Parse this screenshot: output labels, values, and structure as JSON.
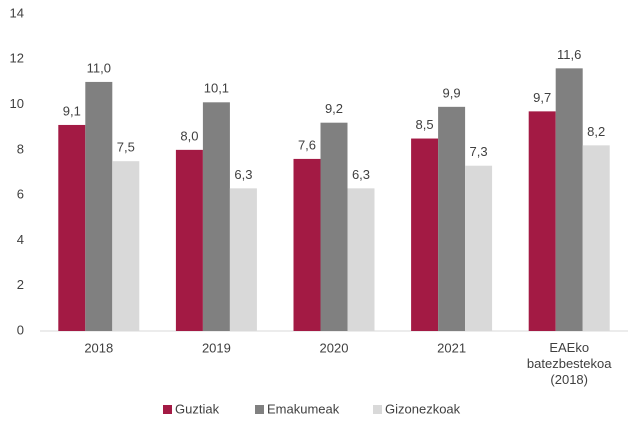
{
  "chart_data": {
    "type": "bar",
    "categories": [
      "2018",
      "2019",
      "2020",
      "2021",
      "EAEko batezbestekoa (2018)"
    ],
    "series": [
      {
        "name": "Guztiak",
        "color": "#a31a44",
        "values": [
          9.1,
          8.0,
          7.6,
          8.5,
          9.7
        ],
        "value_labels": [
          "9,1",
          "8,0",
          "7,6",
          "8,5",
          "9,7"
        ]
      },
      {
        "name": "Emakumeak",
        "color": "#808080",
        "values": [
          11.0,
          10.1,
          9.2,
          9.9,
          11.6
        ],
        "value_labels": [
          "11,0",
          "10,1",
          "9,2",
          "9,9",
          "11,6"
        ]
      },
      {
        "name": "Gizonezkoak",
        "color": "#d9d9d9",
        "values": [
          7.5,
          6.3,
          6.3,
          7.3,
          8.2
        ],
        "value_labels": [
          "7,5",
          "6,3",
          "6,3",
          "7,3",
          "8,2"
        ]
      }
    ],
    "ylim": [
      0,
      14
    ],
    "yticks": [
      0,
      2,
      4,
      6,
      8,
      10,
      12,
      14
    ],
    "grid": false,
    "legend": "bottom"
  }
}
